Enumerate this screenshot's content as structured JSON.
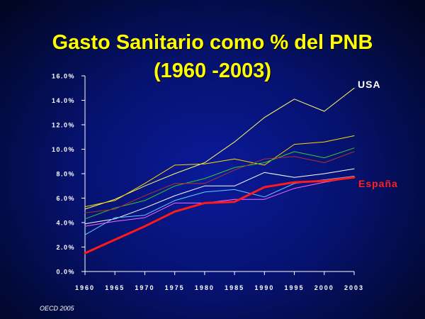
{
  "chart_data": {
    "type": "line",
    "title": "Gasto Sanitario como % del PNB",
    "subtitle": "(1960 -2003)",
    "xlabel": "",
    "ylabel": "",
    "x": [
      "1960",
      "1965",
      "1970",
      "1975",
      "1980",
      "1985",
      "1990",
      "1995",
      "2000",
      "2003"
    ],
    "ylim": [
      0,
      16
    ],
    "yticks": [
      "0.0%",
      "2.0%",
      "4.0%",
      "6.0%",
      "8.0%",
      "10.0%",
      "12.0%",
      "14.0%",
      "16.0%"
    ],
    "yticks_values": [
      0,
      2,
      4,
      6,
      8,
      10,
      12,
      14,
      16
    ],
    "grid": false,
    "series": [
      {
        "name": "USA",
        "color": "#ffff66",
        "values": [
          5.1,
          5.9,
          7.0,
          8.0,
          8.9,
          10.6,
          12.6,
          14.1,
          13.1,
          15.0
        ],
        "highlight": false
      },
      {
        "name": "",
        "color": "#ffd700",
        "values": [
          5.3,
          5.8,
          7.2,
          8.7,
          8.8,
          9.2,
          8.7,
          10.4,
          10.6,
          11.1
        ],
        "highlight": false
      },
      {
        "name": "",
        "color": "#33cc33",
        "values": [
          4.3,
          5.2,
          5.8,
          7.0,
          7.6,
          8.5,
          8.9,
          9.8,
          9.3,
          10.1
        ],
        "highlight": false
      },
      {
        "name": "",
        "color": "#b03030",
        "values": [
          4.8,
          5.1,
          6.2,
          7.2,
          7.2,
          8.3,
          9.2,
          9.4,
          8.9,
          9.8
        ],
        "highlight": false
      },
      {
        "name": "",
        "color": "#ffffff",
        "values": [
          3.9,
          4.3,
          5.2,
          6.2,
          7.0,
          7.0,
          8.1,
          7.7,
          8.0,
          8.4
        ],
        "highlight": false
      },
      {
        "name": "",
        "color": "#66ccff",
        "values": [
          3.0,
          4.4,
          4.6,
          5.8,
          6.5,
          6.7,
          6.1,
          7.2,
          7.5,
          7.8
        ],
        "highlight": false
      },
      {
        "name": "",
        "color": "#ff66ff",
        "values": [
          3.7,
          4.1,
          4.4,
          5.6,
          5.6,
          5.9,
          5.9,
          6.8,
          7.3,
          7.7
        ],
        "highlight": false
      },
      {
        "name": "España",
        "color": "#ff1a1a",
        "values": [
          1.5,
          2.6,
          3.7,
          4.9,
          5.6,
          5.7,
          6.9,
          7.3,
          7.4,
          7.7
        ],
        "highlight": true
      }
    ],
    "annotations": [
      {
        "text": "USA",
        "color": "#ffffff"
      },
      {
        "text": "España",
        "color": "#ff2020"
      }
    ]
  },
  "source_note": "OECD 2005"
}
